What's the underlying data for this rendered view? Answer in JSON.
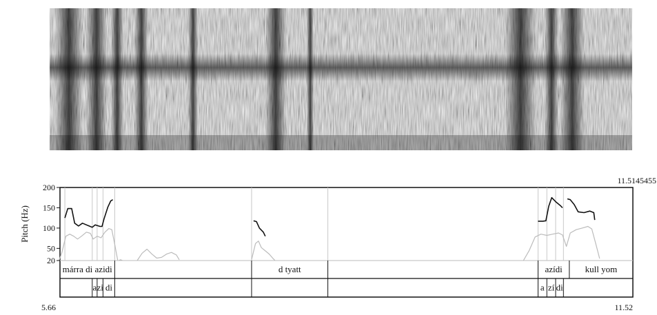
{
  "figure": {
    "top_right_time": "11.5145455",
    "x_start": "5.66",
    "x_end": "11.52",
    "y_label": "Pitch (Hz)"
  },
  "chart_data": {
    "type": "line",
    "title": "",
    "xlabel": "",
    "ylabel": "Pitch (Hz)",
    "xlim": [
      5.66,
      11.52
    ],
    "ylim": [
      20,
      200
    ],
    "yticks": [
      20,
      50,
      100,
      150,
      200
    ],
    "ytick_labels": [
      "20",
      "50",
      "100",
      "150",
      "200"
    ],
    "grid": false,
    "series": [
      {
        "name": "",
        "color": "#111111",
        "segments": [
          [
            [
              5.71,
              125
            ],
            [
              5.74,
              148
            ],
            [
              5.78,
              148
            ],
            [
              5.81,
              112
            ],
            [
              5.85,
              105
            ],
            [
              5.89,
              112
            ],
            [
              5.95,
              106
            ],
            [
              5.99,
              102
            ],
            [
              6.02,
              108
            ],
            [
              6.07,
              104
            ],
            [
              6.09,
              104
            ],
            [
              6.11,
              122
            ],
            [
              6.15,
              152
            ],
            [
              6.18,
              167
            ],
            [
              6.2,
              170
            ]
          ],
          [
            [
              7.64,
              118
            ],
            [
              7.67,
              116
            ],
            [
              7.7,
              100
            ],
            [
              7.74,
              90
            ],
            [
              7.76,
              80
            ]
          ],
          [
            [
              10.55,
              117
            ],
            [
              10.6,
              117
            ],
            [
              10.63,
              118
            ],
            [
              10.66,
              154
            ],
            [
              10.69,
              175
            ],
            [
              10.73,
              165
            ],
            [
              10.78,
              155
            ],
            [
              10.8,
              150
            ]
          ],
          [
            [
              10.85,
              172
            ],
            [
              10.88,
              170
            ],
            [
              10.92,
              158
            ],
            [
              10.96,
              140
            ],
            [
              11.02,
              138
            ],
            [
              11.08,
              142
            ],
            [
              11.12,
              138
            ],
            [
              11.13,
              120
            ]
          ]
        ]
      },
      {
        "name": "",
        "color": "#bbbbbb",
        "segments": [
          [
            [
              5.65,
              20
            ],
            [
              5.68,
              40
            ],
            [
              5.72,
              80
            ],
            [
              5.76,
              85
            ],
            [
              5.8,
              80
            ],
            [
              5.84,
              73
            ],
            [
              5.88,
              80
            ],
            [
              5.93,
              90
            ],
            [
              5.97,
              87
            ],
            [
              6.0,
              73
            ],
            [
              6.04,
              80
            ],
            [
              6.08,
              76
            ],
            [
              6.12,
              90
            ],
            [
              6.16,
              99
            ],
            [
              6.19,
              96
            ],
            [
              6.22,
              60
            ],
            [
              6.25,
              21
            ]
          ],
          [
            [
              6.26,
              20
            ],
            [
              6.28,
              22
            ],
            [
              6.3,
              20
            ]
          ],
          [
            [
              6.45,
              20
            ],
            [
              6.5,
              38
            ],
            [
              6.55,
              48
            ],
            [
              6.6,
              36
            ],
            [
              6.65,
              26
            ],
            [
              6.7,
              28
            ],
            [
              6.75,
              36
            ],
            [
              6.8,
              40
            ],
            [
              6.85,
              34
            ],
            [
              6.88,
              22
            ]
          ],
          [
            [
              7.62,
              22
            ],
            [
              7.66,
              62
            ],
            [
              7.69,
              68
            ],
            [
              7.72,
              52
            ],
            [
              7.76,
              44
            ],
            [
              7.8,
              36
            ],
            [
              7.84,
              25
            ],
            [
              7.86,
              20
            ]
          ],
          [
            [
              10.4,
              20
            ],
            [
              10.46,
              45
            ],
            [
              10.52,
              78
            ],
            [
              10.58,
              85
            ],
            [
              10.64,
              82
            ],
            [
              10.7,
              85
            ],
            [
              10.76,
              88
            ],
            [
              10.8,
              83
            ],
            [
              10.84,
              55
            ],
            [
              10.88,
              88
            ],
            [
              10.94,
              96
            ],
            [
              11.0,
              100
            ],
            [
              11.06,
              104
            ],
            [
              11.1,
              98
            ],
            [
              11.14,
              62
            ],
            [
              11.18,
              25
            ]
          ]
        ]
      }
    ],
    "tiers": [
      {
        "name": "words",
        "intervals": [
          {
            "start": 5.66,
            "end": 6.22,
            "label": "márra di   azidi"
          },
          {
            "start": 6.22,
            "end": 7.62,
            "label": ""
          },
          {
            "start": 7.62,
            "end": 8.4,
            "label": "d tyatt"
          },
          {
            "start": 8.4,
            "end": 10.55,
            "label": ""
          },
          {
            "start": 10.55,
            "end": 10.87,
            "label": "azídi"
          },
          {
            "start": 10.87,
            "end": 11.52,
            "label": "kull yom"
          }
        ]
      },
      {
        "name": "syllables",
        "intervals": [
          {
            "start": 5.66,
            "end": 5.99,
            "label": ""
          },
          {
            "start": 5.99,
            "end": 6.04,
            "label": "a"
          },
          {
            "start": 6.04,
            "end": 6.1,
            "label": "zi"
          },
          {
            "start": 6.1,
            "end": 6.22,
            "label": "di"
          },
          {
            "start": 6.22,
            "end": 7.62,
            "label": ""
          },
          {
            "start": 7.62,
            "end": 8.4,
            "label": ""
          },
          {
            "start": 8.4,
            "end": 10.55,
            "label": ""
          },
          {
            "start": 10.55,
            "end": 10.64,
            "label": "a"
          },
          {
            "start": 10.64,
            "end": 10.73,
            "label": "zí"
          },
          {
            "start": 10.73,
            "end": 10.81,
            "label": "di"
          },
          {
            "start": 10.81,
            "end": 11.52,
            "label": ""
          }
        ]
      }
    ],
    "boundaries": [
      5.71,
      5.99,
      6.04,
      6.1,
      6.22,
      7.62,
      8.4,
      10.55,
      10.64,
      10.73,
      10.81
    ]
  }
}
